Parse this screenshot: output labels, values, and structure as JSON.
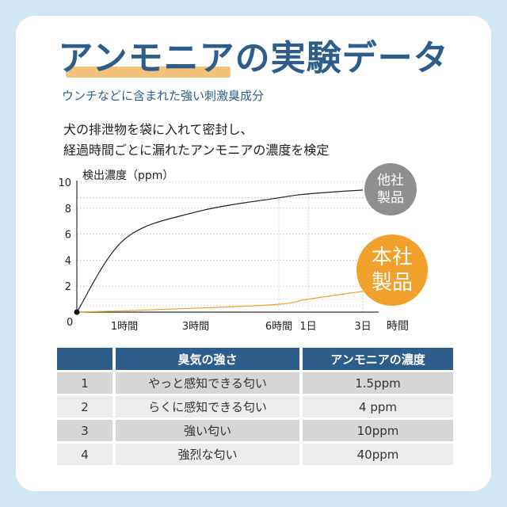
{
  "header": {
    "title": "アンモニアの実験データ",
    "subtitle": "ウンチなどに含まれた強い刺激臭成分",
    "description_line1": "犬の排泄物を袋に入れて密封し、",
    "description_line2": "経過時間ごとに漏れたアンモニアの濃度を検定"
  },
  "colors": {
    "accent": "#2d5d8a",
    "highlight": "#f3c27a",
    "ours": "#f2a02c",
    "other": "#8f8f8f"
  },
  "chart_data": {
    "type": "line",
    "ylabel": "検出濃度（ppm）",
    "xlabel": "時間",
    "origin_label": "0",
    "ylim": [
      0,
      10
    ],
    "y_ticks": [
      "10",
      "8",
      "6",
      "4",
      "2"
    ],
    "x_ticks": [
      "1時間",
      "3時間",
      "6時間",
      "1日",
      "3日"
    ],
    "series": [
      {
        "name": "他社製品",
        "label_line1": "他社",
        "label_line2": "製品",
        "x": [
          "0",
          "1時間",
          "3時間",
          "6時間",
          "1日",
          "3日"
        ],
        "values": [
          0,
          5.6,
          7.7,
          8.8,
          9.1,
          9.4
        ]
      },
      {
        "name": "本社製品",
        "label_line1": "本社",
        "label_line2": "製品",
        "x": [
          "0",
          "1時間",
          "3時間",
          "6時間",
          "1日",
          "3日"
        ],
        "values": [
          0,
          0.1,
          0.3,
          0.6,
          1.0,
          1.6
        ]
      }
    ]
  },
  "table": {
    "headers": [
      "",
      "臭気の強さ",
      "アンモニアの濃度"
    ],
    "rows": [
      {
        "level": "1",
        "description": "やっと感知できる匂い",
        "concentration": "1.5ppm"
      },
      {
        "level": "2",
        "description": "らくに感知できる匂い",
        "concentration": "4 ppm"
      },
      {
        "level": "3",
        "description": "強い匂い",
        "concentration": "10ppm"
      },
      {
        "level": "4",
        "description": "強烈な匂い",
        "concentration": "40ppm"
      }
    ]
  }
}
